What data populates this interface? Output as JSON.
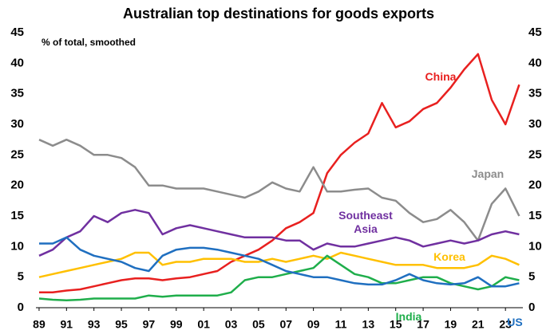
{
  "chart_data": {
    "type": "line",
    "title": "Australian top destinations for goods exports",
    "subtitle": "% of total, smoothed",
    "x": [
      1989,
      1990,
      1991,
      1992,
      1993,
      1994,
      1995,
      1996,
      1997,
      1998,
      1999,
      2000,
      2001,
      2002,
      2003,
      2004,
      2005,
      2006,
      2007,
      2008,
      2009,
      2010,
      2011,
      2012,
      2013,
      2014,
      2015,
      2016,
      2017,
      2018,
      2019,
      2020,
      2021,
      2022,
      2023,
      2024
    ],
    "xlim": [
      1988.77,
      2024.27
    ],
    "xticks": [
      {
        "value": 1989,
        "label": "89"
      },
      {
        "value": 1991,
        "label": "91"
      },
      {
        "value": 1993,
        "label": "93"
      },
      {
        "value": 1995,
        "label": "95"
      },
      {
        "value": 1997,
        "label": "97"
      },
      {
        "value": 1999,
        "label": "99"
      },
      {
        "value": 2001,
        "label": "01"
      },
      {
        "value": 2003,
        "label": "03"
      },
      {
        "value": 2005,
        "label": "05"
      },
      {
        "value": 2007,
        "label": "07"
      },
      {
        "value": 2009,
        "label": "09"
      },
      {
        "value": 2011,
        "label": "11"
      },
      {
        "value": 2013,
        "label": "13"
      },
      {
        "value": 2015,
        "label": "15"
      },
      {
        "value": 2017,
        "label": "17"
      },
      {
        "value": 2019,
        "label": "19"
      },
      {
        "value": 2021,
        "label": "21"
      },
      {
        "value": 2023,
        "label": "23"
      }
    ],
    "ylim": [
      0,
      45
    ],
    "yticks": [
      0,
      5,
      10,
      15,
      20,
      25,
      30,
      35,
      40,
      45
    ],
    "y2lim": [
      0,
      45
    ],
    "y2ticks": [
      0,
      5,
      10,
      15,
      20,
      25,
      30,
      35,
      40,
      45
    ],
    "grid": false,
    "series": [
      {
        "name": "China",
        "color": "#e8201f",
        "values": [
          2.5,
          2.5,
          2.8,
          3,
          3.5,
          4,
          4.5,
          4.8,
          4.8,
          4.5,
          4.8,
          5,
          5.5,
          6,
          7.5,
          8.5,
          9.5,
          11,
          13,
          14,
          15.5,
          22,
          25,
          27,
          28.5,
          33.5,
          29.5,
          30.5,
          32.5,
          33.5,
          36,
          39,
          41.5,
          34,
          30,
          36.5
        ]
      },
      {
        "name": "Japan",
        "color": "#8c8c8c",
        "values": [
          27.5,
          26.5,
          27.5,
          26.5,
          25,
          25,
          24.5,
          23,
          20,
          20,
          19.5,
          19.5,
          19.5,
          19,
          18.5,
          18,
          19,
          20.5,
          19.5,
          19,
          23,
          19,
          19,
          19.3,
          19.5,
          18,
          17.5,
          15.5,
          14,
          14.5,
          16,
          14,
          11,
          17,
          19.5,
          15
        ]
      },
      {
        "name": "Southeast Asia",
        "color": "#7030a0",
        "values": [
          8.5,
          9.5,
          11.5,
          12.5,
          15,
          14,
          15.5,
          16,
          15.5,
          12,
          13,
          13.5,
          13,
          12.5,
          12,
          11.5,
          11.5,
          11.5,
          11,
          11,
          9.5,
          10.5,
          10,
          10,
          10.5,
          11,
          11.5,
          11,
          10,
          10.5,
          11,
          10.5,
          11,
          12,
          12.5,
          12
        ]
      },
      {
        "name": "Korea",
        "color": "#ffc000",
        "values": [
          5,
          5.5,
          6,
          6.5,
          7,
          7.5,
          8,
          9,
          9,
          7,
          7.5,
          7.5,
          8,
          8,
          8,
          7.5,
          7.5,
          8,
          7.5,
          8,
          8.5,
          8,
          9,
          8.5,
          8,
          7.5,
          7,
          7,
          7,
          6.5,
          6.5,
          6.5,
          7,
          8.5,
          8,
          7
        ]
      },
      {
        "name": "India",
        "color": "#1fae4b",
        "values": [
          1.5,
          1.3,
          1.2,
          1.3,
          1.5,
          1.5,
          1.5,
          1.5,
          2,
          1.8,
          2,
          2,
          2,
          2,
          2.5,
          4.5,
          5,
          5,
          5.5,
          6,
          6.5,
          8.5,
          7,
          5.5,
          5,
          4,
          4,
          4.5,
          5,
          5,
          4,
          3.5,
          3,
          3.5,
          5,
          4.5
        ]
      },
      {
        "name": "US",
        "color": "#1f6fc0",
        "values": [
          10.5,
          10.5,
          11.5,
          9.5,
          8.5,
          8,
          7.5,
          6.5,
          6,
          8.5,
          9.5,
          9.8,
          9.8,
          9.5,
          9,
          8.5,
          8,
          7,
          6,
          5.5,
          5,
          5,
          4.5,
          4,
          3.8,
          3.8,
          4.5,
          5.5,
          4.5,
          4,
          3.8,
          4,
          5,
          3.5,
          3.5,
          4
        ]
      }
    ]
  }
}
